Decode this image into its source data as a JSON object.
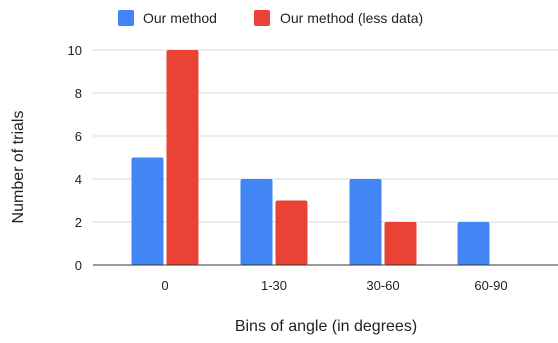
{
  "chart_data": {
    "type": "bar",
    "categories": [
      "0",
      "1-30",
      "30-60",
      "60-90"
    ],
    "series": [
      {
        "name": "Our method",
        "color": "#4285F4",
        "values": [
          5,
          4,
          4,
          2
        ]
      },
      {
        "name": "Our method (less data)",
        "color": "#EA4335",
        "values": [
          10,
          3,
          2,
          0
        ]
      }
    ],
    "title": "",
    "xlabel": "Bins of angle (in degrees)",
    "ylabel": "Number of trials",
    "ylim": [
      0,
      10
    ],
    "yticks": [
      0,
      2,
      4,
      6,
      8,
      10
    ],
    "grid": true,
    "legend": "top"
  }
}
